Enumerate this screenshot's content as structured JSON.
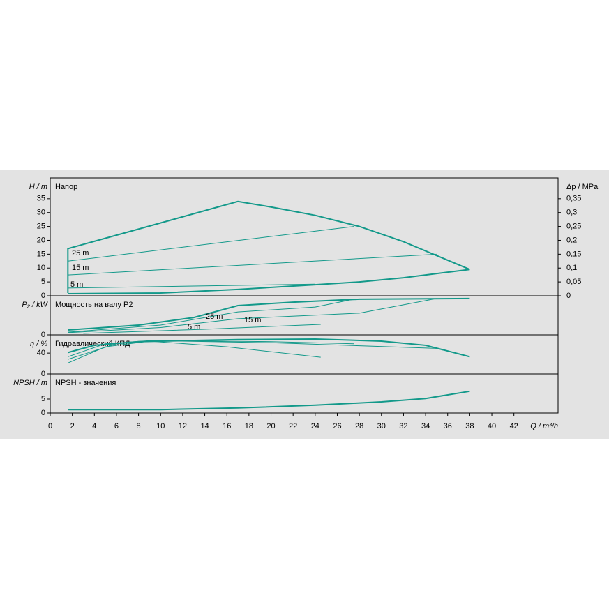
{
  "chart_data": [
    {
      "type": "line",
      "title": "Напор",
      "y_label": "H / m",
      "y2_label": "Δp / MPa",
      "ylim": [
        0,
        42.5
      ],
      "yticks": [
        0,
        5,
        10,
        15,
        20,
        25,
        30,
        35
      ],
      "y2lim": [
        0,
        0.425
      ],
      "y2ticks": [
        0,
        {
          "value": 0.05,
          "label": "0,05"
        },
        {
          "value": 0.1,
          "label": "0,1"
        },
        {
          "value": 0.15,
          "label": "0,15"
        },
        {
          "value": 0.2,
          "label": "0,2"
        },
        {
          "value": 0.25,
          "label": "0,25"
        },
        {
          "value": 0.3,
          "label": "0,3"
        },
        {
          "value": 0.35,
          "label": "0,35"
        }
      ],
      "series": [
        {
          "color": "#13998a",
          "line_width": 2,
          "x": [
            1.6,
            1.6,
            17,
            20,
            24,
            28,
            32,
            35,
            38
          ],
          "values": [
            1,
            17,
            34,
            32,
            29,
            25,
            19.5,
            14.5,
            9.5
          ]
        },
        {
          "color": "#13998a",
          "line_width": 2,
          "x": [
            1.6,
            10,
            17,
            24,
            28,
            32,
            38
          ],
          "values": [
            0.75,
            1,
            2.3,
            4,
            5,
            6.5,
            9.5
          ]
        },
        {
          "name": "25 m",
          "color": "#13998a",
          "line_width": 1,
          "x": [
            1.6,
            27.5
          ],
          "values": [
            12.5,
            25
          ]
        },
        {
          "name": "15 m",
          "color": "#13998a",
          "line_width": 1,
          "x": [
            1.6,
            35
          ],
          "values": [
            7.5,
            15
          ]
        },
        {
          "name": "5 m",
          "color": "#13998a",
          "line_width": 1,
          "x": [
            1.6,
            24
          ],
          "values": [
            2.8,
            4.2
          ]
        }
      ]
    },
    {
      "type": "line",
      "title": "Мощность на валу P2",
      "y_label": "P₂ / kW",
      "ylim": [
        0,
        1.6
      ],
      "yticks": [
        0
      ],
      "series": [
        {
          "color": "#13998a",
          "line_width": 2,
          "x": [
            1.6,
            8,
            13,
            17,
            22,
            28,
            38
          ],
          "values": [
            0.2,
            0.4,
            0.71,
            1.2,
            1.34,
            1.46,
            1.49
          ]
        },
        {
          "name": "25 m",
          "color": "#13998a",
          "line_width": 1,
          "x": [
            1.6,
            10,
            17,
            24,
            27.5
          ],
          "values": [
            0.11,
            0.4,
            0.94,
            1.14,
            1.46
          ]
        },
        {
          "name": "15 m",
          "color": "#13998a",
          "line_width": 1,
          "x": [
            1.6,
            10,
            17,
            28,
            35
          ],
          "values": [
            0.09,
            0.3,
            0.66,
            0.89,
            1.49
          ]
        },
        {
          "name": "5 m",
          "color": "#13998a",
          "line_width": 1,
          "x": [
            3,
            14,
            24.5
          ],
          "values": [
            0.06,
            0.23,
            0.43
          ]
        }
      ]
    },
    {
      "type": "line",
      "title": "Гидравлический КПД",
      "y_label": "η / %",
      "ylim": [
        0,
        75
      ],
      "yticks": [
        0,
        40
      ],
      "series": [
        {
          "color": "#13998a",
          "line_width": 2,
          "x": [
            1.6,
            4,
            8,
            17,
            24,
            30,
            34,
            38
          ],
          "values": [
            41,
            55,
            62,
            66,
            67,
            63,
            55,
            33
          ]
        },
        {
          "color": "#13998a",
          "line_width": 1,
          "x": [
            1.6,
            6,
            10,
            20,
            27.5
          ],
          "values": [
            28,
            58,
            64,
            62,
            58
          ]
        },
        {
          "color": "#13998a",
          "line_width": 1,
          "x": [
            1.6,
            5,
            9,
            20,
            35
          ],
          "values": [
            33,
            58,
            64,
            60,
            49
          ]
        },
        {
          "color": "#13998a",
          "line_width": 1,
          "x": [
            1.6,
            5,
            9,
            16,
            24.5
          ],
          "values": [
            21,
            52,
            63,
            52,
            32
          ]
        }
      ]
    },
    {
      "type": "line",
      "title": "NPSH - значения",
      "y_label": "NPSH / m",
      "x_label": "Q / m³/h",
      "ylim": [
        0,
        14
      ],
      "yticks": [
        0,
        5
      ],
      "xlim": [
        0,
        46
      ],
      "xticks": [
        0,
        2,
        4,
        6,
        8,
        10,
        12,
        14,
        16,
        18,
        20,
        22,
        24,
        26,
        28,
        30,
        32,
        34,
        36,
        38,
        40,
        42
      ],
      "series": [
        {
          "color": "#13998a",
          "line_width": 2,
          "x": [
            1.6,
            5,
            10,
            17,
            24,
            30,
            34,
            38
          ],
          "values": [
            1.2,
            1.2,
            1.2,
            1.8,
            2.8,
            4,
            5.2,
            7.8
          ]
        }
      ]
    }
  ]
}
